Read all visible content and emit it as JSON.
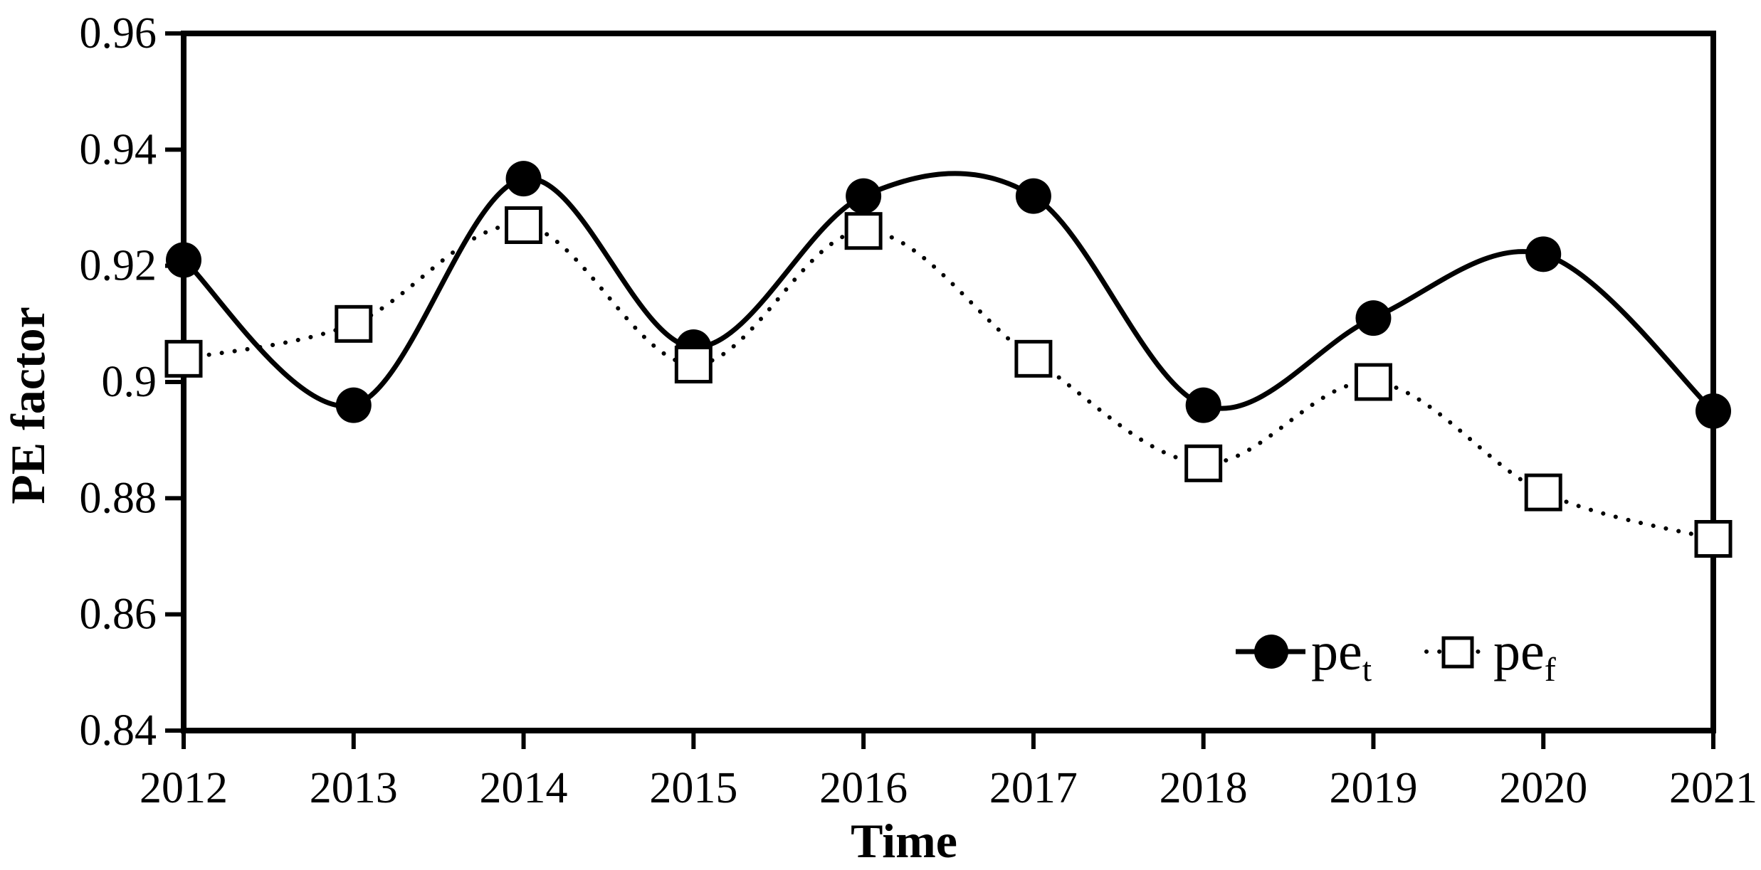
{
  "figure": {
    "background": "#ffffff",
    "ink_color": "#000000"
  },
  "chart_data": {
    "type": "line",
    "title": "",
    "xlabel": "Time",
    "ylabel": "PE factor",
    "x_categories": [
      "2012",
      "2013",
      "2014",
      "2015",
      "2016",
      "2017",
      "2018",
      "2019",
      "2020",
      "2021"
    ],
    "ylim": [
      0.84,
      0.96
    ],
    "ytick_interval": 0.02,
    "ytick_labels_top_to_bottom": [
      "0.96",
      "0.94",
      "0.92",
      "0.9",
      "0.88",
      "0.86",
      "0.84"
    ],
    "grid": false,
    "frame": true,
    "legend_position": "inside-bottom-right",
    "series": [
      {
        "name": "pe_t",
        "legend_label": "pe",
        "legend_sub": "t",
        "line_style": "solid",
        "marker": "filled-circle",
        "color": "#000000",
        "values": [
          0.921,
          0.896,
          0.935,
          0.906,
          0.932,
          0.932,
          0.896,
          0.911,
          0.922,
          0.895
        ]
      },
      {
        "name": "pe_f",
        "legend_label": "pe",
        "legend_sub": "f",
        "line_style": "dotted",
        "marker": "open-square",
        "color": "#000000",
        "values": [
          0.904,
          0.91,
          0.927,
          0.903,
          0.926,
          0.904,
          0.886,
          0.9,
          0.881,
          0.873
        ]
      }
    ]
  }
}
